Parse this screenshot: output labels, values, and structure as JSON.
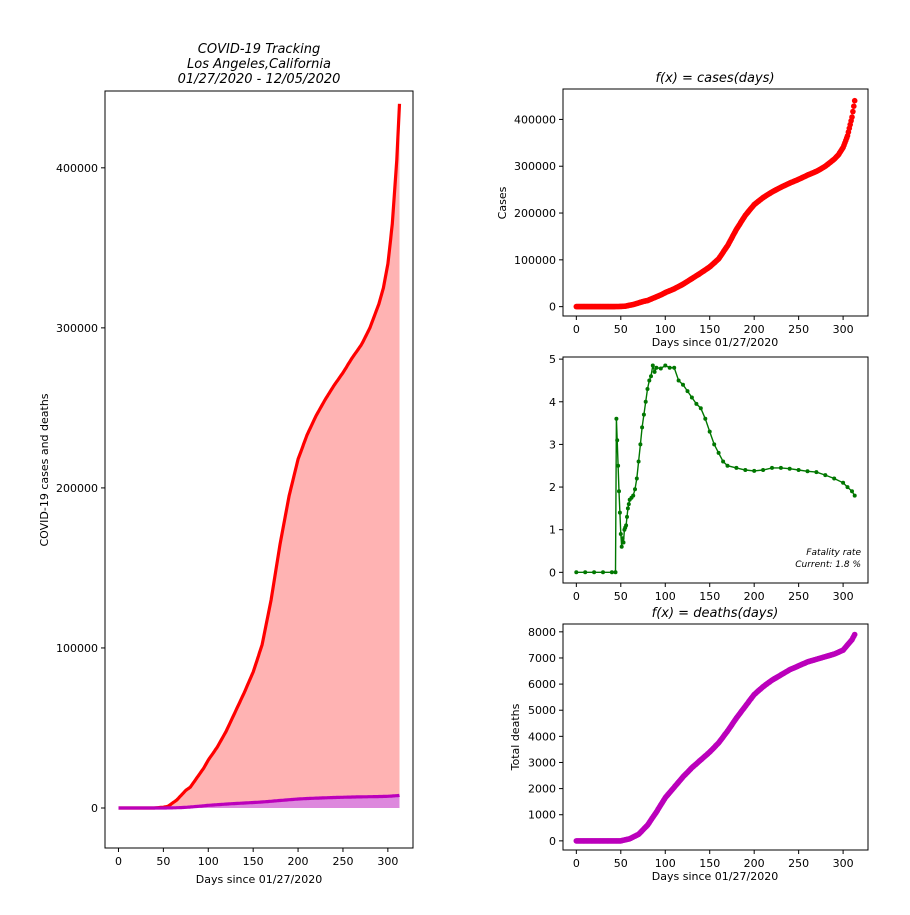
{
  "chart_data": [
    {
      "type": "area",
      "title_lines": [
        "COVID-19 Tracking",
        "Los Angeles,California",
        "01/27/2020 - 12/05/2020"
      ],
      "xlabel": "Days since 01/27/2020",
      "ylabel": "COVID-19 cases and deaths",
      "xlim": [
        -15,
        328
      ],
      "ylim": [
        -25000,
        448000
      ],
      "xticks": [
        0,
        50,
        100,
        150,
        200,
        250,
        300
      ],
      "yticks": [
        0,
        100000,
        200000,
        300000,
        400000
      ],
      "ytick_labels": [
        "0",
        "100000",
        "200000",
        "300000",
        "400000"
      ],
      "series": [
        {
          "name": "cases",
          "color": "#ff0000",
          "fill": "#ffb3b3",
          "x": [
            0,
            40,
            50,
            55,
            60,
            65,
            70,
            75,
            80,
            85,
            90,
            95,
            100,
            110,
            120,
            130,
            140,
            150,
            160,
            170,
            180,
            190,
            200,
            210,
            220,
            230,
            240,
            250,
            260,
            270,
            272,
            280,
            290,
            295,
            300,
            305,
            310,
            313
          ],
          "y": [
            0,
            0,
            500,
            1000,
            3000,
            5000,
            8000,
            11000,
            13000,
            17000,
            21000,
            25000,
            30000,
            38000,
            48000,
            60000,
            72000,
            85000,
            102000,
            130000,
            165000,
            195000,
            218000,
            233000,
            245000,
            255000,
            264000,
            272000,
            281000,
            289000,
            291000,
            300000,
            315000,
            325000,
            340000,
            365000,
            405000,
            440000
          ]
        },
        {
          "name": "deaths",
          "color": "#bb00bb",
          "fill": "#dd88dd",
          "x": [
            0,
            50,
            60,
            70,
            80,
            90,
            100,
            110,
            120,
            130,
            140,
            150,
            160,
            170,
            180,
            190,
            200,
            210,
            220,
            230,
            240,
            250,
            260,
            270,
            280,
            290,
            300,
            310,
            313
          ],
          "y": [
            0,
            0,
            80,
            250,
            600,
            1100,
            1650,
            2050,
            2450,
            2800,
            3100,
            3400,
            3750,
            4200,
            4700,
            5150,
            5600,
            5900,
            6150,
            6350,
            6550,
            6700,
            6850,
            6950,
            7050,
            7150,
            7300,
            7700,
            7900
          ]
        }
      ]
    },
    {
      "type": "scatter",
      "title": "f(x) = cases(days)",
      "xlabel": "Days since 01/27/2020",
      "ylabel": "Cases",
      "xlim": [
        -15,
        328
      ],
      "ylim": [
        -20000,
        465000
      ],
      "xticks": [
        0,
        50,
        100,
        150,
        200,
        250,
        300
      ],
      "yticks": [
        0,
        100000,
        200000,
        300000,
        400000
      ],
      "ytick_labels": [
        "0",
        "100000",
        "200000",
        "300000",
        "400000"
      ],
      "color": "#ff0000"
    },
    {
      "type": "line",
      "title": "",
      "xlim": [
        -15,
        328
      ],
      "ylim": [
        -0.25,
        5.05
      ],
      "xticks": [
        0,
        50,
        100,
        150,
        200,
        250,
        300
      ],
      "yticks": [
        0,
        1,
        2,
        3,
        4,
        5
      ],
      "color": "#007700",
      "annotation": [
        "Fatality rate",
        "Current: 1.8 %"
      ],
      "x": [
        0,
        10,
        20,
        30,
        40,
        44,
        45,
        46,
        47,
        48,
        49,
        50,
        51,
        52,
        53,
        54,
        55,
        56,
        57,
        58,
        59,
        60,
        62,
        64,
        66,
        68,
        70,
        72,
        74,
        76,
        78,
        80,
        82,
        84,
        86,
        88,
        90,
        95,
        100,
        105,
        110,
        115,
        120,
        125,
        130,
        135,
        140,
        145,
        150,
        155,
        160,
        165,
        170,
        180,
        190,
        200,
        210,
        220,
        230,
        240,
        250,
        260,
        270,
        280,
        290,
        300,
        305,
        310,
        313
      ],
      "y": [
        0,
        0,
        0,
        0,
        0,
        0,
        3.6,
        3.1,
        2.5,
        1.9,
        1.4,
        0.9,
        0.6,
        0.8,
        0.7,
        1.0,
        1.05,
        1.1,
        1.3,
        1.5,
        1.6,
        1.7,
        1.75,
        1.8,
        1.95,
        2.2,
        2.6,
        3.0,
        3.4,
        3.7,
        4.0,
        4.3,
        4.5,
        4.6,
        4.85,
        4.7,
        4.8,
        4.78,
        4.85,
        4.8,
        4.8,
        4.5,
        4.4,
        4.25,
        4.1,
        3.95,
        3.85,
        3.6,
        3.3,
        3.0,
        2.8,
        2.6,
        2.5,
        2.45,
        2.4,
        2.38,
        2.4,
        2.45,
        2.45,
        2.43,
        2.4,
        2.37,
        2.35,
        2.28,
        2.2,
        2.1,
        2.0,
        1.9,
        1.8
      ]
    },
    {
      "type": "scatter",
      "title": "f(x) = deaths(days)",
      "xlabel": "Days since 01/27/2020",
      "ylabel": "Total deaths",
      "xlim": [
        -15,
        328
      ],
      "ylim": [
        -350,
        8300
      ],
      "xticks": [
        0,
        50,
        100,
        150,
        200,
        250,
        300
      ],
      "yticks": [
        0,
        1000,
        2000,
        3000,
        4000,
        5000,
        6000,
        7000,
        8000
      ],
      "color": "#bb00bb"
    }
  ]
}
